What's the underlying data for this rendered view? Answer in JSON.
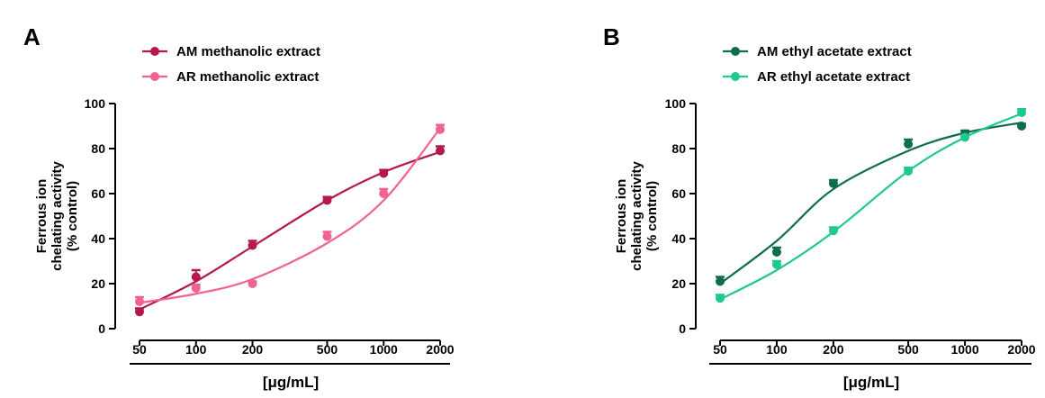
{
  "chart_data": [
    {
      "type": "line",
      "panel": "A",
      "ylabel": [
        "Ferrous ion",
        "chelating activity",
        "(% control)"
      ],
      "xlabel": "[μg/mL]",
      "x_scale": "log",
      "x_ticks": [
        50,
        100,
        200,
        500,
        1000,
        2000
      ],
      "y_ticks": [
        0,
        20,
        40,
        60,
        80,
        100
      ],
      "ylim": [
        0,
        100
      ],
      "legend_position": "top-left",
      "grid": false,
      "series": [
        {
          "name": "AM methanolic extract",
          "color": "#b5174f",
          "x": [
            50,
            100,
            200,
            500,
            1000,
            2000
          ],
          "y": [
            7.5,
            23,
            37,
            57,
            69,
            79
          ],
          "y_err": [
            1.5,
            3,
            2,
            1.5,
            1.5,
            2
          ],
          "fit": [
            8.5,
            21,
            36.5,
            57,
            69.5,
            78.5
          ]
        },
        {
          "name": "AR methanolic extract",
          "color": "#f06291",
          "x": [
            50,
            100,
            200,
            500,
            1000,
            2000
          ],
          "y": [
            12,
            18,
            20,
            41,
            60,
            88.5
          ],
          "y_err": [
            2,
            1.5,
            1,
            2,
            2,
            2
          ],
          "fit": [
            11.5,
            15.5,
            22,
            38,
            57,
            89
          ]
        }
      ]
    },
    {
      "type": "line",
      "panel": "B",
      "ylabel": [
        "Ferrous ion",
        "chelating activity",
        "(% control)"
      ],
      "xlabel": "[μg/mL]",
      "x_scale": "log",
      "x_ticks": [
        50,
        100,
        200,
        500,
        1000,
        2000
      ],
      "y_ticks": [
        0,
        20,
        40,
        60,
        80,
        100
      ],
      "ylim": [
        0,
        100
      ],
      "legend_position": "top-left",
      "grid": false,
      "series": [
        {
          "name": "AM ethyl acetate extract",
          "color": "#0e6e4a",
          "x": [
            50,
            100,
            200,
            500,
            1000,
            2000
          ],
          "y": [
            21,
            34,
            64.5,
            82,
            86.5,
            90
          ],
          "y_err": [
            2,
            2,
            1.5,
            2,
            1.5,
            1
          ],
          "fit": [
            20,
            39,
            62,
            79,
            87,
            91.5
          ]
        },
        {
          "name": "AR ethyl acetate extract",
          "color": "#1fc88c",
          "x": [
            50,
            100,
            200,
            500,
            1000,
            2000
          ],
          "y": [
            13.5,
            28.5,
            43.5,
            70,
            85,
            96
          ],
          "y_err": [
            1.5,
            1.5,
            1.5,
            1.5,
            1,
            1.5
          ],
          "fit": [
            13,
            26,
            43,
            70,
            85,
            95.5
          ]
        }
      ]
    }
  ]
}
